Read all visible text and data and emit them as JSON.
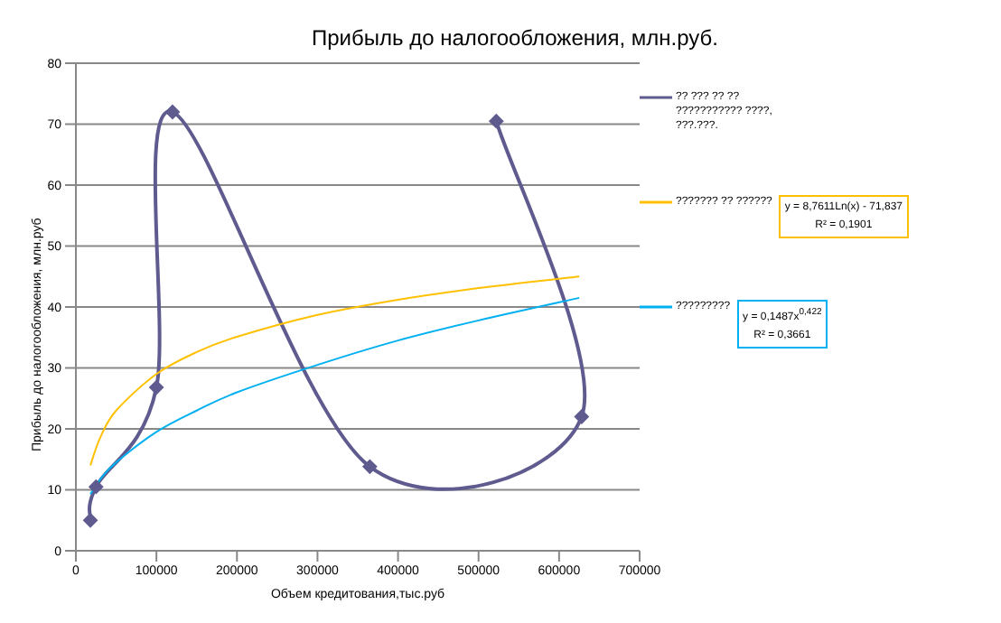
{
  "chart_data": {
    "type": "line",
    "title": "Прибыль до налогообложения, млн.руб.",
    "xlabel": "Объем кредитования,тыс.руб",
    "ylabel": "Прибыль до налогообложения, млн.руб",
    "xlim": [
      0,
      700000
    ],
    "xticks": [
      0,
      100000,
      200000,
      300000,
      400000,
      500000,
      600000,
      700000
    ],
    "ylim": [
      0,
      80
    ],
    "yticks": [
      0,
      10,
      20,
      30,
      40,
      50,
      60,
      70,
      80
    ],
    "grid": "y",
    "legend": "right",
    "series": [
      {
        "name": "?? ??? ?? ?? ??????????? ????, ???.???.",
        "color": "#5f5b8f",
        "marker": "diamond",
        "x": [
          18000,
          25000,
          100000,
          120000,
          365000,
          628000,
          522000
        ],
        "values": [
          5,
          10.5,
          26.8,
          72,
          13.8,
          22,
          70.5
        ]
      },
      {
        "name": "??????? ?? ??????",
        "color": "#ffc000",
        "marker": "none",
        "x": [
          18000,
          30000,
          50000,
          100000,
          150000,
          200000,
          300000,
          400000,
          500000,
          625000
        ],
        "values": [
          14,
          18.5,
          23,
          29,
          32.6,
          35.1,
          38.7,
          41.2,
          43.1,
          45
        ]
      },
      {
        "name": "?????????",
        "color": "#00b0f0",
        "marker": "none",
        "x": [
          18000,
          30000,
          50000,
          100000,
          150000,
          200000,
          300000,
          400000,
          500000,
          625000
        ],
        "values": [
          9.3,
          11.7,
          14.5,
          19.5,
          23,
          26,
          30.5,
          34.5,
          37.8,
          41.5
        ]
      }
    ],
    "annotations": [
      "y = 8,7611Ln(x) - 71,837\nR² = 0,1901",
      "y = 0,1487x$^{0,422}$\nR² = 0,3661"
    ]
  }
}
